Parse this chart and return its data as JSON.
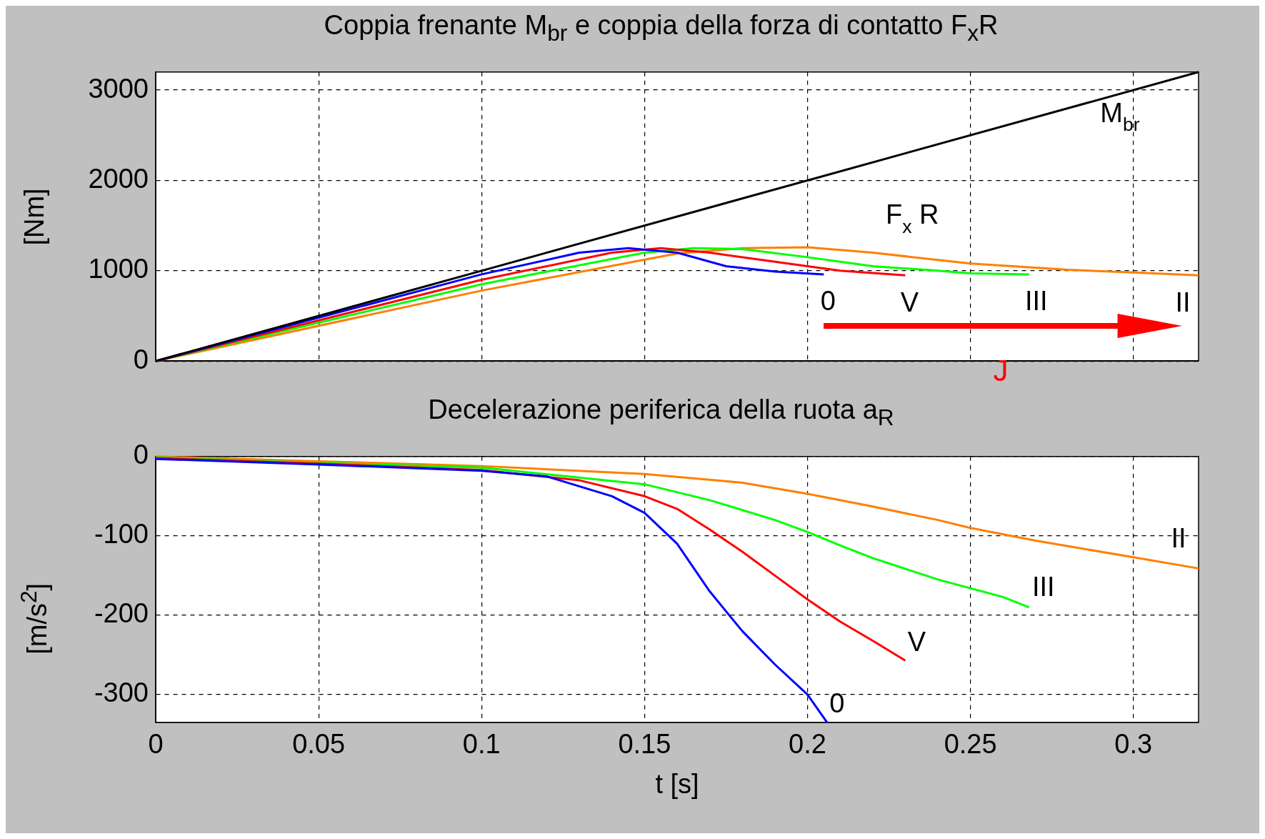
{
  "chart_data": [
    {
      "type": "line",
      "title": "Coppia frenante M$_{br}$ e coppia della forza di contatto F$_{x}$R",
      "ylabel": "[Nm]",
      "xlim": [
        0,
        0.32
      ],
      "xticks": [
        0,
        0.05,
        0.1,
        0.15,
        0.2,
        0.25,
        0.3
      ],
      "ylim": [
        0,
        3200
      ],
      "yticks": [
        0,
        1000,
        2000,
        3000
      ],
      "grid": true,
      "legend": false,
      "tick_labels": "y",
      "marker": "none",
      "line_style": "solid",
      "series": [
        {
          "name": "M$_{br}$",
          "color": "#000000",
          "x": [
            0,
            0.1,
            0.2,
            0.32
          ],
          "values": [
            0,
            1000,
            2000,
            3200
          ]
        },
        {
          "name": "0",
          "color": "#0000ff",
          "x": [
            0,
            0.1,
            0.13,
            0.145,
            0.16,
            0.175,
            0.19,
            0.205
          ],
          "values": [
            0,
            960,
            1200,
            1250,
            1200,
            1050,
            990,
            960
          ]
        },
        {
          "name": "V",
          "color": "#ff0000",
          "x": [
            0,
            0.1,
            0.14,
            0.155,
            0.17,
            0.19,
            0.21,
            0.23
          ],
          "values": [
            0,
            900,
            1200,
            1250,
            1200,
            1100,
            1000,
            950
          ]
        },
        {
          "name": "III",
          "color": "#00ff00",
          "x": [
            0,
            0.1,
            0.15,
            0.165,
            0.18,
            0.2,
            0.22,
            0.24,
            0.25,
            0.268
          ],
          "values": [
            0,
            850,
            1200,
            1250,
            1240,
            1150,
            1050,
            1000,
            970,
            960
          ]
        },
        {
          "name": "II",
          "color": "#ff7f00",
          "x": [
            0,
            0.1,
            0.16,
            0.18,
            0.2,
            0.22,
            0.25,
            0.28,
            0.3,
            0.32
          ],
          "values": [
            0,
            780,
            1190,
            1250,
            1260,
            1200,
            1080,
            1010,
            980,
            950
          ]
        }
      ],
      "annotations": [
        "F$_{x}$ R",
        "J"
      ]
    },
    {
      "type": "line",
      "title": "Decelerazione periferica della ruota a$_{R}$",
      "xlabel": "t [s]",
      "ylabel": "[m/s$^{2}$]",
      "xlim": [
        0,
        0.32
      ],
      "xticks": [
        0,
        0.05,
        0.1,
        0.15,
        0.2,
        0.25,
        0.3
      ],
      "ylim": [
        -335,
        0
      ],
      "yticks": [
        -300,
        -200,
        -100,
        0
      ],
      "grid": true,
      "legend": false,
      "marker": "none",
      "line_style": "solid",
      "series": [
        {
          "name": "0",
          "color": "#0000ff",
          "x": [
            0,
            0.05,
            0.1,
            0.12,
            0.14,
            0.15,
            0.16,
            0.17,
            0.18,
            0.19,
            0.2,
            0.206
          ],
          "values": [
            -3,
            -10,
            -18,
            -25,
            -50,
            -71,
            -110,
            -170,
            -220,
            -262,
            -300,
            -335
          ]
        },
        {
          "name": "V",
          "color": "#ff0000",
          "x": [
            0,
            0.05,
            0.1,
            0.13,
            0.15,
            0.16,
            0.17,
            0.18,
            0.19,
            0.2,
            0.21,
            0.22,
            0.23
          ],
          "values": [
            -2,
            -9,
            -17,
            -30,
            -50,
            -66,
            -92,
            -120,
            -150,
            -180,
            -208,
            -232,
            -257
          ]
        },
        {
          "name": "III",
          "color": "#00ff00",
          "x": [
            0,
            0.05,
            0.1,
            0.15,
            0.17,
            0.19,
            0.2,
            0.21,
            0.22,
            0.24,
            0.26,
            0.268
          ],
          "values": [
            -1,
            -8,
            -14,
            -35,
            -55,
            -80,
            -95,
            -112,
            -128,
            -155,
            -177,
            -190
          ]
        },
        {
          "name": "II",
          "color": "#ff7f00",
          "x": [
            0,
            0.05,
            0.1,
            0.15,
            0.18,
            0.2,
            0.22,
            0.24,
            0.25,
            0.27,
            0.3,
            0.32
          ],
          "values": [
            0,
            -6,
            -12,
            -22,
            -33,
            -47,
            -63,
            -80,
            -90,
            -106,
            -127,
            -141
          ]
        }
      ]
    }
  ]
}
